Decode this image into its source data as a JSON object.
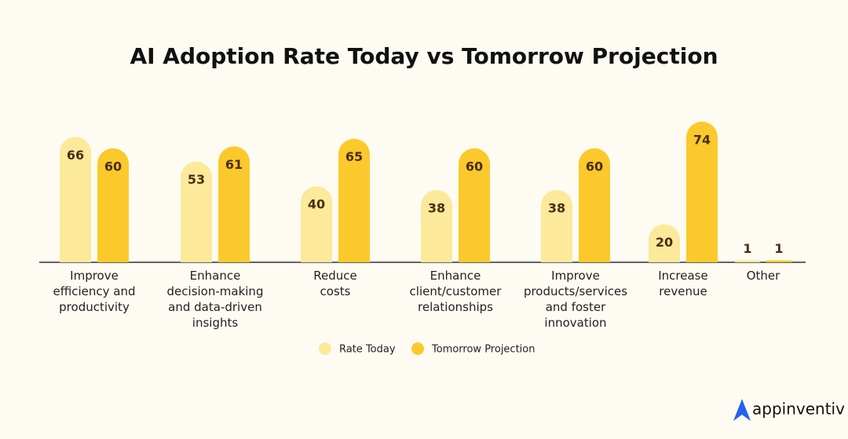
{
  "chart_data": {
    "type": "bar",
    "title": "AI Adoption Rate Today vs Tomorrow Projection",
    "categories": [
      "Improve efficiency and productivity",
      "Enhance decision-making and data-driven insights",
      "Reduce costs",
      "Enhance client/customer relationships",
      "Improve products/services and foster innovation",
      "Increase revenue",
      "Other"
    ],
    "series": [
      {
        "name": "Rate Today",
        "color": "#fce99a",
        "values": [
          66,
          53,
          40,
          38,
          38,
          20,
          1
        ]
      },
      {
        "name": "Tomorrow Projection",
        "color": "#fbc92b",
        "values": [
          60,
          61,
          65,
          60,
          60,
          74,
          1
        ]
      }
    ]
  },
  "brand": "appinventiv"
}
